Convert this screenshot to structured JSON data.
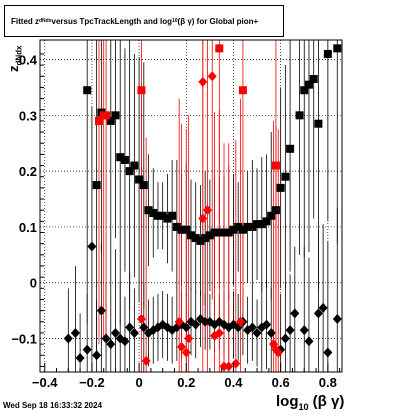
{
  "title": {
    "text": "Fitted  z",
    "sub1": "dNdx",
    "mid": "  versus TpcTrackLength and log",
    "sub2": "10",
    "tail": " (β  γ) for Global pion+"
  },
  "footer": "Wed Sep 18 16:33:32 2024",
  "colors": {
    "black": "#000000",
    "red": "#ff0000",
    "grid": "#000000"
  },
  "chart_data": {
    "type": "scatter",
    "xlabel_main": "log",
    "xlabel_sub": "10",
    "xlabel_tail": " (β γ)",
    "ylabel_main": "z",
    "ylabel_sub": "dNdx",
    "xlim": [
      -0.42,
      0.86
    ],
    "ylim": [
      -0.16,
      0.435
    ],
    "xticks": [
      -0.4,
      -0.2,
      0,
      0.2,
      0.4,
      0.6,
      0.8
    ],
    "xtick_labels": [
      "−0.4",
      "−0.2",
      "0",
      "0.2",
      "0.4",
      "0.6",
      "0.8"
    ],
    "yticks": [
      -0.1,
      0,
      0.1,
      0.2,
      0.3,
      0.4
    ],
    "ytick_labels": [
      "−0.1",
      "0",
      "0.1",
      "0.2",
      "0.3",
      "0.4"
    ],
    "grid": true,
    "series": [
      {
        "marker": "square",
        "color": "#000000",
        "points": [
          [
            -0.22,
            0.345,
            0.42
          ],
          [
            -0.18,
            0.175,
            0.3
          ],
          [
            -0.16,
            0.305,
            0.25
          ],
          [
            -0.12,
            0.29,
            0.3
          ],
          [
            -0.1,
            0.3,
            0.22
          ],
          [
            -0.08,
            0.225,
            0.3
          ],
          [
            -0.06,
            0.22,
            0.2
          ],
          [
            -0.04,
            0.2,
            0.25
          ],
          [
            -0.02,
            0.21,
            0.2
          ],
          [
            0.0,
            0.185,
            0.22
          ],
          [
            0.02,
            0.175,
            0.22
          ],
          [
            0.04,
            0.13,
            0.1
          ],
          [
            0.06,
            0.125,
            0.08
          ],
          [
            0.08,
            0.12,
            0.06
          ],
          [
            0.1,
            0.12,
            0.06
          ],
          [
            0.12,
            0.115,
            0.08
          ],
          [
            0.14,
            0.12,
            0.1
          ],
          [
            0.16,
            0.1,
            0.12
          ],
          [
            0.18,
            0.095,
            0.1
          ],
          [
            0.2,
            0.095,
            0.12
          ],
          [
            0.22,
            0.085,
            0.1
          ],
          [
            0.24,
            0.08,
            0.1
          ],
          [
            0.26,
            0.075,
            0.1
          ],
          [
            0.28,
            0.08,
            0.12
          ],
          [
            0.3,
            0.085,
            0.1
          ],
          [
            0.32,
            0.09,
            0.1
          ],
          [
            0.34,
            0.09,
            0.1
          ],
          [
            0.36,
            0.09,
            0.1
          ],
          [
            0.38,
            0.09,
            0.12
          ],
          [
            0.4,
            0.095,
            0.1
          ],
          [
            0.42,
            0.1,
            0.08
          ],
          [
            0.44,
            0.095,
            0.1
          ],
          [
            0.46,
            0.1,
            0.1
          ],
          [
            0.48,
            0.1,
            0.12
          ],
          [
            0.5,
            0.105,
            0.1
          ],
          [
            0.52,
            0.105,
            0.12
          ],
          [
            0.54,
            0.11,
            0.12
          ],
          [
            0.56,
            0.12,
            0.15
          ],
          [
            0.58,
            0.13,
            0.15
          ],
          [
            0.6,
            0.17,
            0.18
          ],
          [
            0.62,
            0.19,
            0.2
          ],
          [
            0.64,
            0.24,
            0.22
          ],
          [
            0.68,
            0.3,
            0.25
          ],
          [
            0.7,
            0.345,
            0.3
          ],
          [
            0.72,
            0.355,
            0.3
          ],
          [
            0.74,
            0.365,
            0.25
          ],
          [
            0.76,
            0.285,
            0.3
          ],
          [
            0.8,
            0.41,
            0.3
          ],
          [
            0.84,
            0.42,
            0.35
          ]
        ]
      },
      {
        "marker": "diamond",
        "color": "#000000",
        "points": [
          [
            -0.3,
            -0.1,
            0.09
          ],
          [
            -0.27,
            -0.09,
            0.12
          ],
          [
            -0.25,
            -0.135,
            0.08
          ],
          [
            -0.22,
            -0.12,
            0.1
          ],
          [
            -0.2,
            0.065,
            0.25
          ],
          [
            -0.18,
            -0.13,
            0.1
          ],
          [
            -0.16,
            -0.05,
            0.12
          ],
          [
            -0.14,
            -0.1,
            0.1
          ],
          [
            -0.12,
            -0.11,
            0.1
          ],
          [
            -0.1,
            -0.09,
            0.15
          ],
          [
            -0.08,
            -0.1,
            0.1
          ],
          [
            -0.06,
            -0.105,
            0.08
          ],
          [
            -0.04,
            -0.08,
            0.1
          ],
          [
            -0.02,
            -0.09,
            0.08
          ],
          [
            0.02,
            -0.08,
            0.08
          ],
          [
            0.04,
            -0.09,
            0.06
          ],
          [
            0.06,
            -0.085,
            0.06
          ],
          [
            0.08,
            -0.08,
            0.06
          ],
          [
            0.1,
            -0.075,
            0.06
          ],
          [
            0.12,
            -0.08,
            0.06
          ],
          [
            0.14,
            -0.085,
            0.06
          ],
          [
            0.16,
            -0.08,
            0.06
          ],
          [
            0.18,
            -0.075,
            0.06
          ],
          [
            0.2,
            -0.08,
            0.06
          ],
          [
            0.22,
            -0.07,
            0.06
          ],
          [
            0.24,
            -0.075,
            0.06
          ],
          [
            0.26,
            -0.065,
            0.05
          ],
          [
            0.28,
            -0.07,
            0.05
          ],
          [
            0.3,
            -0.07,
            0.05
          ],
          [
            0.32,
            -0.075,
            0.05
          ],
          [
            0.34,
            -0.07,
            0.05
          ],
          [
            0.36,
            -0.075,
            0.06
          ],
          [
            0.38,
            -0.08,
            0.06
          ],
          [
            0.4,
            -0.075,
            0.06
          ],
          [
            0.42,
            -0.08,
            0.06
          ],
          [
            0.44,
            -0.07,
            0.06
          ],
          [
            0.46,
            -0.085,
            0.06
          ],
          [
            0.48,
            -0.08,
            0.06
          ],
          [
            0.5,
            -0.09,
            0.06
          ],
          [
            0.52,
            -0.08,
            0.08
          ],
          [
            0.54,
            -0.075,
            0.08
          ],
          [
            0.56,
            -0.09,
            0.08
          ],
          [
            0.6,
            -0.12,
            0.1
          ],
          [
            0.62,
            -0.1,
            0.1
          ],
          [
            0.64,
            -0.085,
            0.1
          ],
          [
            0.66,
            -0.055,
            0.12
          ],
          [
            0.7,
            -0.085,
            0.15
          ],
          [
            0.72,
            -0.105,
            0.15
          ],
          [
            0.76,
            -0.055,
            0.15
          ],
          [
            0.78,
            -0.045,
            0.15
          ],
          [
            0.8,
            -0.125,
            0.2
          ],
          [
            0.84,
            -0.065,
            0.2
          ]
        ]
      },
      {
        "marker": "square",
        "color": "#ff0000",
        "points": [
          [
            -0.17,
            0.29,
            0.4
          ],
          [
            -0.15,
            0.3,
            0.4
          ],
          [
            -0.14,
            0.3,
            0.4
          ],
          [
            0.01,
            0.345,
            0.4
          ],
          [
            0.34,
            0.42,
            0.4
          ],
          [
            0.44,
            0.345,
            0.4
          ],
          [
            0.58,
            0.21,
            0.4
          ]
        ]
      },
      {
        "marker": "diamond",
        "color": "#ff0000",
        "points": [
          [
            0.01,
            -0.065,
            0.4
          ],
          [
            0.03,
            -0.14,
            0.4
          ],
          [
            0.17,
            -0.07,
            0.4
          ],
          [
            0.18,
            -0.115,
            0.4
          ],
          [
            0.2,
            -0.125,
            0.4
          ],
          [
            0.21,
            -0.1,
            0.4
          ],
          [
            0.27,
            0.115,
            0.4
          ],
          [
            0.29,
            0.13,
            0.4
          ],
          [
            0.27,
            0.36,
            0.4
          ],
          [
            0.31,
            0.37,
            0.4
          ],
          [
            0.32,
            -0.095,
            0.4
          ],
          [
            0.34,
            -0.09,
            0.4
          ],
          [
            0.36,
            -0.15,
            0.4
          ],
          [
            0.38,
            -0.15,
            0.4
          ],
          [
            0.41,
            -0.145,
            0.4
          ],
          [
            0.43,
            -0.07,
            0.4
          ],
          [
            0.57,
            -0.11,
            0.4
          ],
          [
            0.58,
            -0.12,
            0.4
          ],
          [
            0.59,
            -0.125,
            0.4
          ]
        ]
      }
    ]
  }
}
